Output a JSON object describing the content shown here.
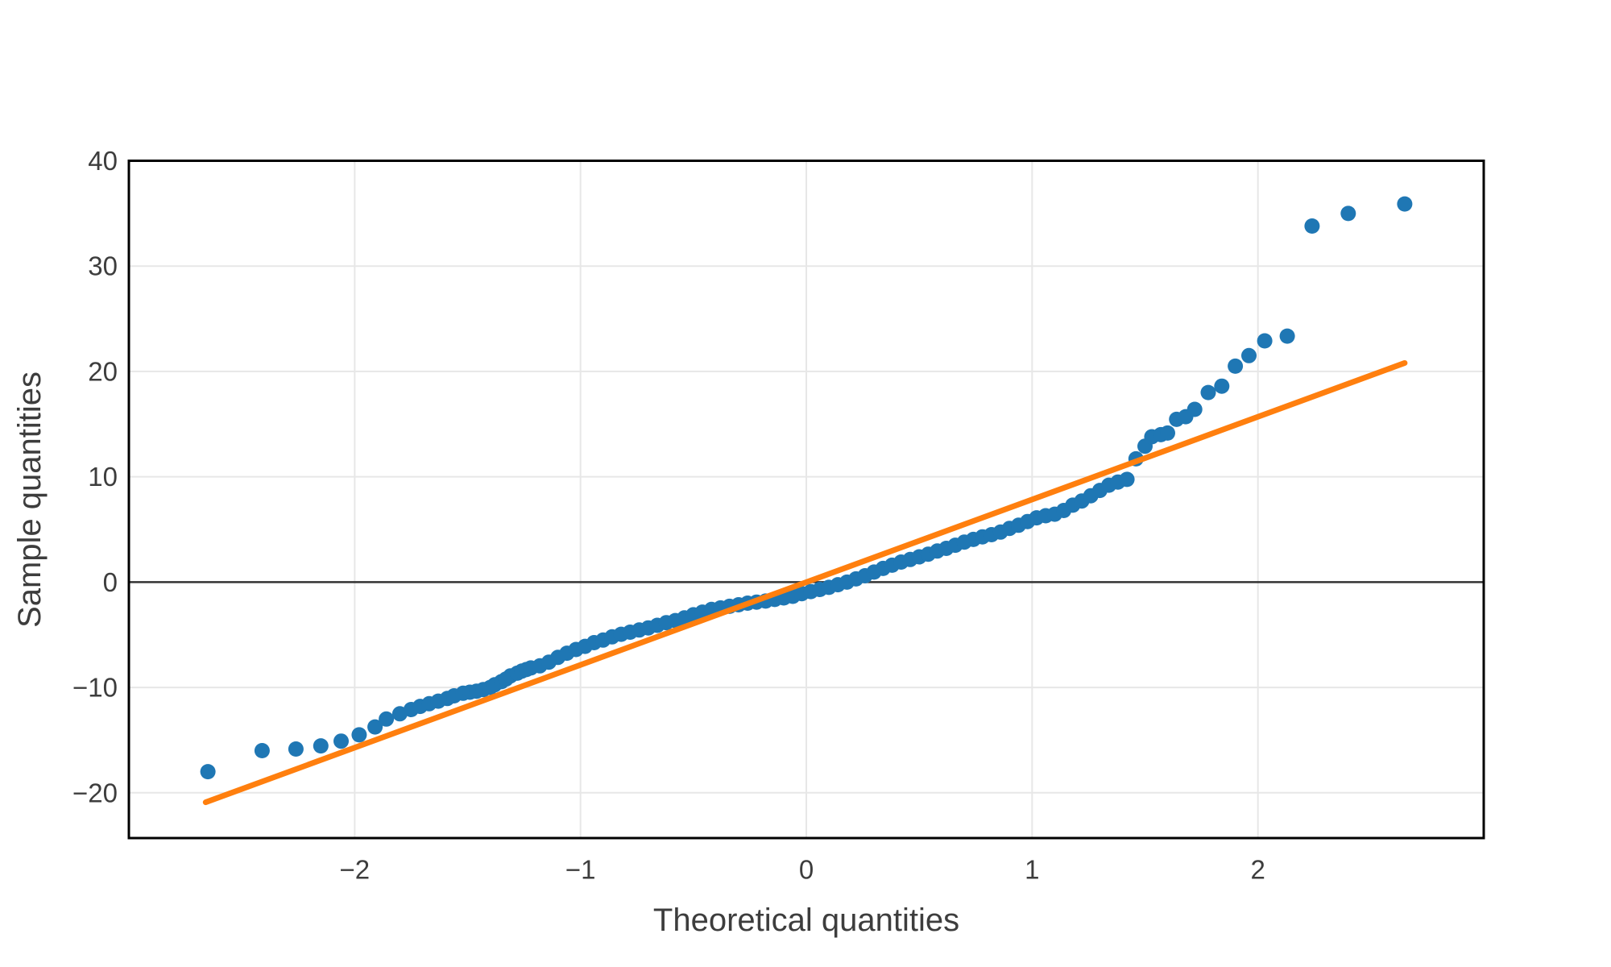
{
  "page": {
    "background": "#ffffff"
  },
  "chart_data": {
    "type": "scatter",
    "title": "",
    "xlabel": "Theoretical quantities",
    "ylabel": "Sample quantities",
    "xlim": [
      -3,
      3
    ],
    "ylim": [
      -24.3,
      40
    ],
    "grid": true,
    "legend_position": "none",
    "zero_line_y": 0,
    "xticks": [
      {
        "value": -2,
        "label": "−2"
      },
      {
        "value": -1,
        "label": "−1"
      },
      {
        "value": 0,
        "label": "0"
      },
      {
        "value": 1,
        "label": "1"
      },
      {
        "value": 2,
        "label": "2"
      }
    ],
    "yticks": [
      {
        "value": -20,
        "label": "−20"
      },
      {
        "value": -10,
        "label": "−10"
      },
      {
        "value": 0,
        "label": "0"
      },
      {
        "value": 10,
        "label": "10"
      },
      {
        "value": 20,
        "label": "20"
      },
      {
        "value": 30,
        "label": "30"
      },
      {
        "value": 40,
        "label": "40"
      }
    ],
    "series": [
      {
        "name": "sample-vs-theoretical-quantiles",
        "kind": "scatter",
        "color": "#1f77b4",
        "points": [
          [
            -2.65,
            -18.0
          ],
          [
            -2.41,
            -16.0
          ],
          [
            -2.26,
            -15.85
          ],
          [
            -2.15,
            -15.55
          ],
          [
            -2.06,
            -15.1
          ],
          [
            -1.98,
            -14.5
          ],
          [
            -1.91,
            -13.75
          ],
          [
            -1.86,
            -13.0
          ],
          [
            -1.8,
            -12.5
          ],
          [
            -1.75,
            -12.1
          ],
          [
            -1.71,
            -11.8
          ],
          [
            -1.67,
            -11.55
          ],
          [
            -1.63,
            -11.3
          ],
          [
            -1.59,
            -11.05
          ],
          [
            -1.56,
            -10.8
          ],
          [
            -1.52,
            -10.55
          ],
          [
            -1.49,
            -10.45
          ],
          [
            -1.46,
            -10.35
          ],
          [
            -1.43,
            -10.2
          ],
          [
            -1.4,
            -10.0
          ],
          [
            -1.38,
            -9.75
          ],
          [
            -1.35,
            -9.45
          ],
          [
            -1.33,
            -9.2
          ],
          [
            -1.31,
            -8.9
          ],
          [
            -1.28,
            -8.65
          ],
          [
            -1.26,
            -8.45
          ],
          [
            -1.24,
            -8.3
          ],
          [
            -1.22,
            -8.15
          ],
          [
            -1.18,
            -7.95
          ],
          [
            -1.14,
            -7.6
          ],
          [
            -1.1,
            -7.15
          ],
          [
            -1.06,
            -6.75
          ],
          [
            -1.02,
            -6.4
          ],
          [
            -0.98,
            -6.1
          ],
          [
            -0.94,
            -5.75
          ],
          [
            -0.9,
            -5.5
          ],
          [
            -0.86,
            -5.2
          ],
          [
            -0.82,
            -4.95
          ],
          [
            -0.78,
            -4.75
          ],
          [
            -0.74,
            -4.55
          ],
          [
            -0.7,
            -4.35
          ],
          [
            -0.66,
            -4.1
          ],
          [
            -0.62,
            -3.85
          ],
          [
            -0.58,
            -3.65
          ],
          [
            -0.54,
            -3.4
          ],
          [
            -0.5,
            -3.1
          ],
          [
            -0.46,
            -2.85
          ],
          [
            -0.42,
            -2.6
          ],
          [
            -0.38,
            -2.45
          ],
          [
            -0.34,
            -2.3
          ],
          [
            -0.3,
            -2.15
          ],
          [
            -0.26,
            -2.0
          ],
          [
            -0.22,
            -1.9
          ],
          [
            -0.18,
            -1.8
          ],
          [
            -0.14,
            -1.65
          ],
          [
            -0.1,
            -1.5
          ],
          [
            -0.06,
            -1.35
          ],
          [
            -0.02,
            -1.1
          ],
          [
            0.02,
            -0.9
          ],
          [
            0.06,
            -0.7
          ],
          [
            0.1,
            -0.5
          ],
          [
            0.14,
            -0.25
          ],
          [
            0.18,
            0.0
          ],
          [
            0.22,
            0.3
          ],
          [
            0.26,
            0.6
          ],
          [
            0.3,
            0.95
          ],
          [
            0.34,
            1.3
          ],
          [
            0.38,
            1.6
          ],
          [
            0.42,
            1.9
          ],
          [
            0.46,
            2.15
          ],
          [
            0.5,
            2.4
          ],
          [
            0.54,
            2.65
          ],
          [
            0.58,
            2.95
          ],
          [
            0.62,
            3.2
          ],
          [
            0.66,
            3.5
          ],
          [
            0.7,
            3.8
          ],
          [
            0.74,
            4.05
          ],
          [
            0.78,
            4.3
          ],
          [
            0.82,
            4.5
          ],
          [
            0.86,
            4.75
          ],
          [
            0.9,
            5.1
          ],
          [
            0.94,
            5.4
          ],
          [
            0.98,
            5.75
          ],
          [
            1.02,
            6.1
          ],
          [
            1.06,
            6.3
          ],
          [
            1.1,
            6.45
          ],
          [
            1.14,
            6.8
          ],
          [
            1.18,
            7.3
          ],
          [
            1.22,
            7.7
          ],
          [
            1.26,
            8.2
          ],
          [
            1.3,
            8.7
          ],
          [
            1.34,
            9.2
          ],
          [
            1.38,
            9.5
          ],
          [
            1.42,
            9.75
          ],
          [
            1.46,
            11.7
          ],
          [
            1.5,
            12.9
          ],
          [
            1.53,
            13.8
          ],
          [
            1.57,
            14.0
          ],
          [
            1.6,
            14.15
          ],
          [
            1.64,
            15.45
          ],
          [
            1.68,
            15.7
          ],
          [
            1.72,
            16.4
          ],
          [
            1.78,
            18.0
          ],
          [
            1.84,
            18.6
          ],
          [
            1.9,
            20.5
          ],
          [
            1.96,
            21.5
          ],
          [
            2.03,
            22.9
          ],
          [
            2.13,
            23.35
          ],
          [
            2.24,
            33.8
          ],
          [
            2.4,
            35.0
          ],
          [
            2.65,
            35.9
          ]
        ]
      },
      {
        "name": "reference-line",
        "kind": "line",
        "color": "#ff7f0e",
        "points": [
          [
            -2.66,
            -20.9
          ],
          [
            2.65,
            20.8
          ]
        ]
      }
    ],
    "style": {
      "point_color": "#1f77b4",
      "line_color": "#ff7f0e",
      "grid_color": "#e7e7e7",
      "zero_line_color": "#333333",
      "spine_color": "#000000",
      "text_color": "#3d3d3d",
      "background": "#ffffff"
    }
  }
}
